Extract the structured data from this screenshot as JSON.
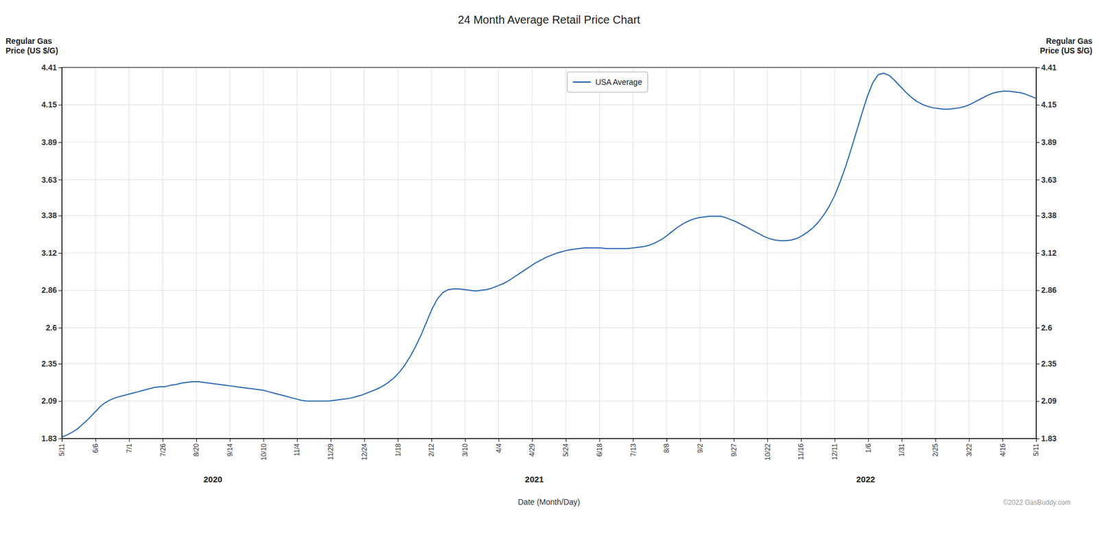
{
  "chart_data": {
    "type": "line",
    "title": "24 Month Average Retail Price Chart",
    "y_label": "Regular Gas\nPrice (US $/G)",
    "y2_label": "Regular Gas\nPrice (US $/G)",
    "x_label": "Date (Month/Day)",
    "annotations": [
      "2020",
      "2021",
      "2022",
      "©2022 GasBuddy.com"
    ],
    "grid": true,
    "legend": "top",
    "xlim": [
      0,
      29
    ],
    "xticks": [
      {
        "value": 0,
        "label": "5/11"
      },
      {
        "value": 1,
        "label": "6/6"
      },
      {
        "value": 2,
        "label": "7/1"
      },
      {
        "value": 3,
        "label": "7/26"
      },
      {
        "value": 4,
        "label": "8/20"
      },
      {
        "value": 5,
        "label": "9/14"
      },
      {
        "value": 6,
        "label": "10/10"
      },
      {
        "value": 7,
        "label": "11/4"
      },
      {
        "value": 8,
        "label": "11/29"
      },
      {
        "value": 9,
        "label": "12/24"
      },
      {
        "value": 10,
        "label": "1/18"
      },
      {
        "value": 11,
        "label": "2/12"
      },
      {
        "value": 12,
        "label": "3/10"
      },
      {
        "value": 13,
        "label": "4/4"
      },
      {
        "value": 14,
        "label": "4/29"
      },
      {
        "value": 15,
        "label": "5/24"
      },
      {
        "value": 16,
        "label": "6/18"
      },
      {
        "value": 17,
        "label": "7/13"
      },
      {
        "value": 18,
        "label": "8/8"
      },
      {
        "value": 19,
        "label": "9/2"
      },
      {
        "value": 20,
        "label": "9/27"
      },
      {
        "value": 21,
        "label": "10/22"
      },
      {
        "value": 22,
        "label": "11/16"
      },
      {
        "value": 23,
        "label": "12/11"
      },
      {
        "value": 24,
        "label": "1/6"
      },
      {
        "value": 25,
        "label": "1/31"
      },
      {
        "value": 26,
        "label": "2/25"
      },
      {
        "value": 27,
        "label": "3/22"
      },
      {
        "value": 28,
        "label": "4/16"
      },
      {
        "value": 29,
        "label": "5/11"
      }
    ],
    "ylim": [
      1.83,
      4.41
    ],
    "yticks": [
      1.83,
      2.09,
      2.35,
      2.6,
      2.86,
      3.12,
      3.38,
      3.63,
      3.89,
      4.15,
      4.41
    ],
    "y2lim": [
      1.83,
      4.41
    ],
    "y2ticks": [
      1.83,
      2.09,
      2.35,
      2.6,
      2.86,
      3.12,
      3.38,
      3.63,
      3.89,
      4.15,
      4.41
    ],
    "series": [
      {
        "name": "USA Average",
        "color": "#2b6cb8",
        "values": [
          1.84,
          1.855,
          1.875,
          1.9,
          1.935,
          1.97,
          2.01,
          2.05,
          2.08,
          2.1,
          2.115,
          2.125,
          2.135,
          2.145,
          2.155,
          2.165,
          2.175,
          2.185,
          2.19,
          2.19,
          2.2,
          2.205,
          2.215,
          2.22,
          2.225,
          2.225,
          2.22,
          2.215,
          2.21,
          2.205,
          2.2,
          2.195,
          2.19,
          2.185,
          2.18,
          2.175,
          2.17,
          2.165,
          2.155,
          2.145,
          2.135,
          2.125,
          2.115,
          2.105,
          2.095,
          2.09,
          2.09,
          2.09,
          2.09,
          2.09,
          2.095,
          2.1,
          2.105,
          2.11,
          2.12,
          2.13,
          2.145,
          2.16,
          2.175,
          2.195,
          2.22,
          2.25,
          2.29,
          2.34,
          2.4,
          2.47,
          2.55,
          2.64,
          2.73,
          2.8,
          2.845,
          2.865,
          2.87,
          2.87,
          2.865,
          2.86,
          2.855,
          2.86,
          2.865,
          2.875,
          2.89,
          2.905,
          2.925,
          2.95,
          2.975,
          3.0,
          3.025,
          3.05,
          3.07,
          3.09,
          3.105,
          3.12,
          3.13,
          3.14,
          3.145,
          3.15,
          3.155,
          3.155,
          3.155,
          3.155,
          3.15,
          3.15,
          3.15,
          3.15,
          3.15,
          3.155,
          3.16,
          3.165,
          3.175,
          3.19,
          3.21,
          3.235,
          3.265,
          3.295,
          3.32,
          3.34,
          3.355,
          3.365,
          3.37,
          3.375,
          3.375,
          3.375,
          3.365,
          3.35,
          3.335,
          3.315,
          3.295,
          3.275,
          3.255,
          3.235,
          3.22,
          3.21,
          3.205,
          3.205,
          3.21,
          3.22,
          3.24,
          3.265,
          3.295,
          3.335,
          3.385,
          3.445,
          3.52,
          3.615,
          3.72,
          3.84,
          3.965,
          4.09,
          4.21,
          4.305,
          4.36,
          4.37,
          4.355,
          4.32,
          4.28,
          4.24,
          4.205,
          4.175,
          4.155,
          4.14,
          4.13,
          4.125,
          4.12,
          4.12,
          4.125,
          4.13,
          4.14,
          4.155,
          4.175,
          4.195,
          4.215,
          4.23,
          4.24,
          4.245,
          4.245,
          4.24,
          4.235,
          4.225,
          4.21,
          4.195
        ]
      }
    ]
  }
}
